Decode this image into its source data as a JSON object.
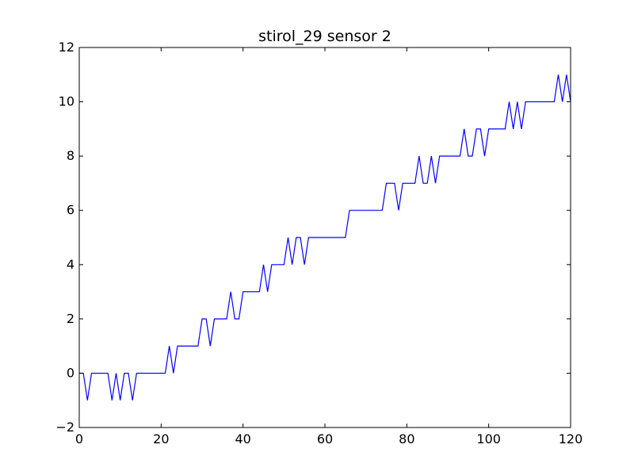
{
  "chart_data": {
    "type": "line",
    "title": "stirol_29 sensor 2",
    "xlabel": "",
    "ylabel": "",
    "xlim": [
      0,
      120
    ],
    "ylim": [
      -2,
      12
    ],
    "x_ticks": [
      0,
      20,
      40,
      60,
      80,
      100,
      120
    ],
    "y_ticks": [
      -2,
      0,
      2,
      4,
      6,
      8,
      10,
      12
    ],
    "x_tick_labels": [
      "0",
      "20",
      "40",
      "60",
      "80",
      "100",
      "120"
    ],
    "y_tick_labels": [
      "−2",
      "0",
      "2",
      "4",
      "6",
      "8",
      "10",
      "12"
    ],
    "grid": false,
    "line_color": "#0000ff",
    "series": [
      {
        "x": [
          0,
          1,
          2,
          3,
          4,
          5,
          6,
          7,
          8,
          9,
          10,
          11,
          12,
          13,
          14,
          15,
          16,
          17,
          18,
          19,
          20,
          21,
          22,
          23,
          24,
          25,
          26,
          27,
          28,
          29,
          30,
          31,
          32,
          33,
          34,
          35,
          36,
          37,
          38,
          39,
          40,
          41,
          42,
          43,
          44,
          45,
          46,
          47,
          48,
          49,
          50,
          51,
          52,
          53,
          54,
          55,
          56,
          57,
          58,
          59,
          60,
          61,
          62,
          63,
          64,
          65,
          66,
          67,
          68,
          69,
          70,
          71,
          72,
          73,
          74,
          75,
          76,
          77,
          78,
          79,
          80,
          81,
          82,
          83,
          84,
          85,
          86,
          87,
          88,
          89,
          90,
          91,
          92,
          93,
          94,
          95,
          96,
          97,
          98,
          99,
          100,
          101,
          102,
          103,
          104,
          105,
          106,
          107,
          108,
          109,
          110,
          111,
          112,
          113,
          114,
          115,
          116,
          117,
          118,
          119,
          120
        ],
        "values": [
          0,
          0,
          -1,
          0,
          0,
          0,
          0,
          0,
          -1,
          0,
          -1,
          0,
          0,
          -1,
          0,
          0,
          0,
          0,
          0,
          0,
          0,
          0,
          1,
          0,
          1,
          1,
          1,
          1,
          1,
          1,
          2,
          2,
          1,
          2,
          2,
          2,
          2,
          3,
          2,
          2,
          3,
          3,
          3,
          3,
          3,
          4,
          3,
          4,
          4,
          4,
          4,
          5,
          4,
          5,
          5,
          4,
          5,
          5,
          5,
          5,
          5,
          5,
          5,
          5,
          5,
          5,
          6,
          6,
          6,
          6,
          6,
          6,
          6,
          6,
          6,
          7,
          7,
          7,
          6,
          7,
          7,
          7,
          7,
          8,
          7,
          7,
          8,
          7,
          8,
          8,
          8,
          8,
          8,
          8,
          9,
          8,
          8,
          9,
          9,
          8,
          9,
          9,
          9,
          9,
          9,
          10,
          9,
          10,
          9,
          10,
          10,
          10,
          10,
          10,
          10,
          10,
          10,
          11,
          10,
          11,
          10
        ]
      }
    ]
  }
}
